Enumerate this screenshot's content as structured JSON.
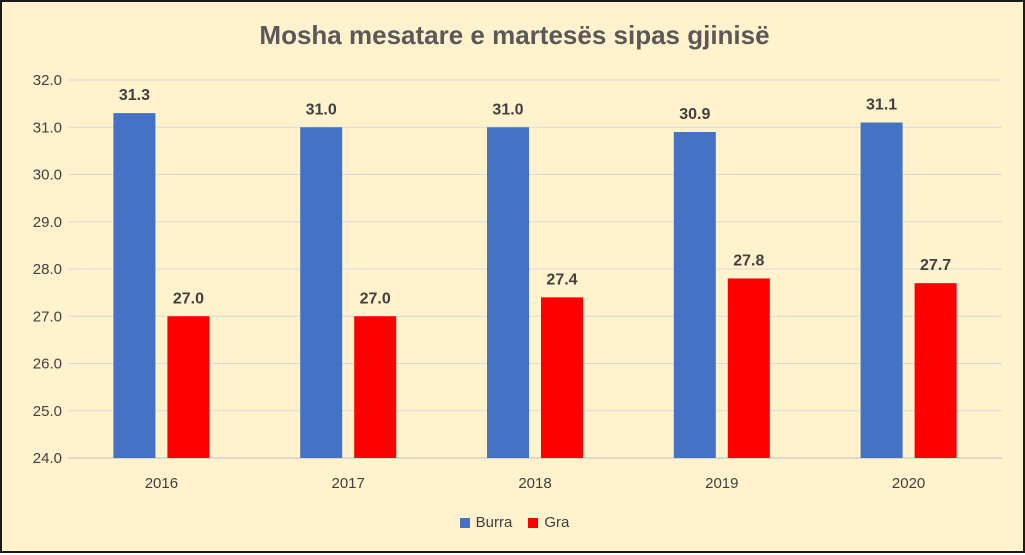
{
  "chart_data": {
    "type": "bar",
    "title": "Mosha mesatare e martesës sipas gjinisë",
    "categories": [
      "2016",
      "2017",
      "2018",
      "2019",
      "2020"
    ],
    "series": [
      {
        "name": "Burra",
        "color": "#4472c4",
        "values": [
          31.3,
          31.0,
          31.0,
          30.9,
          31.1
        ]
      },
      {
        "name": "Gra",
        "color": "#ff0000",
        "values": [
          27.0,
          27.0,
          27.4,
          27.8,
          27.7
        ]
      }
    ],
    "ylim": [
      24.0,
      32.0
    ],
    "yticks": [
      "24.0",
      "25.0",
      "26.0",
      "27.0",
      "28.0",
      "29.0",
      "30.0",
      "31.0",
      "32.0"
    ],
    "grid": true,
    "legend_position": "bottom"
  }
}
